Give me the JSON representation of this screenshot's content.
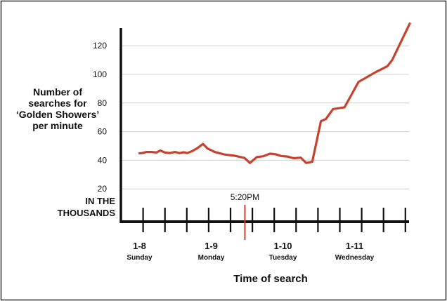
{
  "chart_data": {
    "type": "line",
    "ylabel_lines": [
      "Number of",
      "searches for",
      "‘Golden Showers’",
      "per minute"
    ],
    "unit_lines": [
      "IN THE",
      "THOUSANDS"
    ],
    "xlabel": "Time of search",
    "yticks": [
      20,
      40,
      60,
      80,
      100,
      120
    ],
    "ylim": [
      11,
      137
    ],
    "grid": true,
    "categories": [
      {
        "label": "1-8",
        "sublabel": "Sunday"
      },
      {
        "label": "1-9",
        "sublabel": "Monday"
      },
      {
        "label": "1-10",
        "sublabel": "Tuesday"
      },
      {
        "label": "1-11",
        "sublabel": "Wednesday"
      }
    ],
    "annotation": {
      "label": "5:20PM",
      "x": 2.94
    },
    "color": "#c8412e",
    "series": [
      {
        "points": [
          [
            0.0,
            44.9
          ],
          [
            0.07,
            45.0
          ],
          [
            0.2,
            45.8
          ],
          [
            0.34,
            45.8
          ],
          [
            0.47,
            45.4
          ],
          [
            0.58,
            46.8
          ],
          [
            0.71,
            45.4
          ],
          [
            0.85,
            45.0
          ],
          [
            0.99,
            45.8
          ],
          [
            1.11,
            45.0
          ],
          [
            1.24,
            45.6
          ],
          [
            1.33,
            45.0
          ],
          [
            1.47,
            46.4
          ],
          [
            1.61,
            48.4
          ],
          [
            1.77,
            51.4
          ],
          [
            1.9,
            48.2
          ],
          [
            2.1,
            45.8
          ],
          [
            2.37,
            44.0
          ],
          [
            2.65,
            43.2
          ],
          [
            2.93,
            41.6
          ],
          [
            3.08,
            38.1
          ],
          [
            3.27,
            42.2
          ],
          [
            3.45,
            42.8
          ],
          [
            3.64,
            44.6
          ],
          [
            3.79,
            44.2
          ],
          [
            3.95,
            43.0
          ],
          [
            4.12,
            42.6
          ],
          [
            4.3,
            41.4
          ],
          [
            4.5,
            41.8
          ],
          [
            4.65,
            38.1
          ],
          [
            4.82,
            38.9
          ],
          [
            5.06,
            67.3
          ],
          [
            5.2,
            68.8
          ],
          [
            5.4,
            75.8
          ],
          [
            5.72,
            77.0
          ],
          [
            6.11,
            94.7
          ],
          [
            6.59,
            101.6
          ],
          [
            6.91,
            105.6
          ],
          [
            7.05,
            110.0
          ],
          [
            7.54,
            135.5
          ]
        ]
      }
    ]
  }
}
